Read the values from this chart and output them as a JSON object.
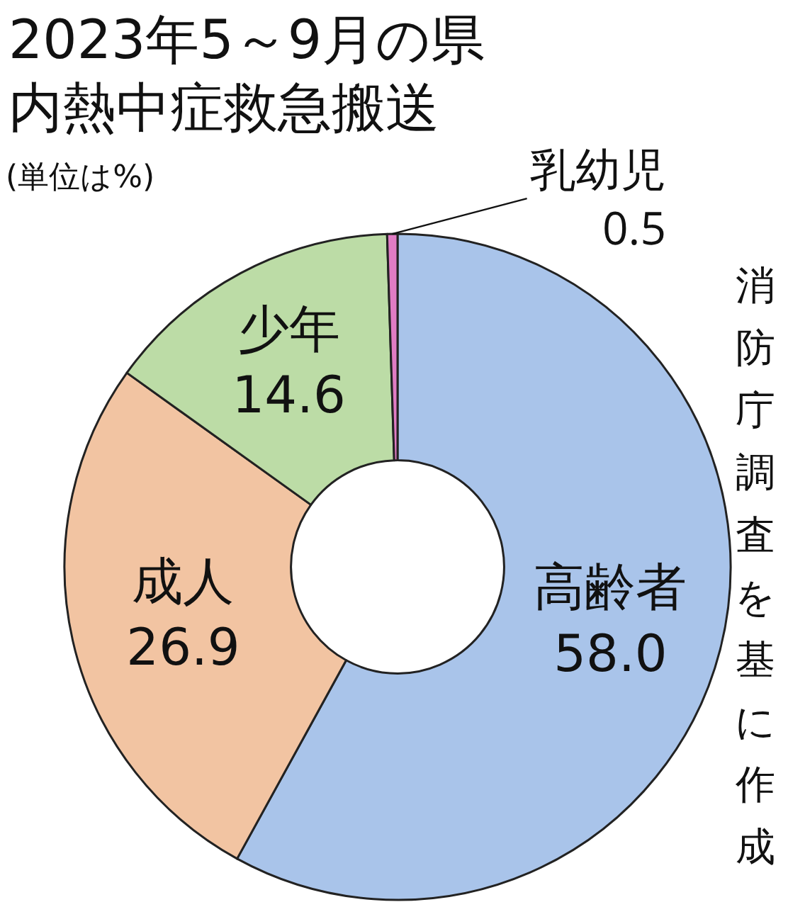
{
  "chart_data": {
    "type": "donut",
    "title": "2023年5～9月の県内熱中症救急搬送",
    "subtitle": "(単位は%)",
    "categories": [
      "高齢者",
      "成人",
      "少年",
      "乳幼児"
    ],
    "values": [
      58.0,
      26.9,
      14.6,
      0.5
    ],
    "colors": [
      "#a9c4ea",
      "#f2c4a2",
      "#bcdca6",
      "#e07cc4"
    ],
    "value_labels": [
      "58.0",
      "26.9",
      "14.6",
      "0.5"
    ],
    "legend": false,
    "annotations": [
      "消防庁調査を基に作成"
    ]
  }
}
